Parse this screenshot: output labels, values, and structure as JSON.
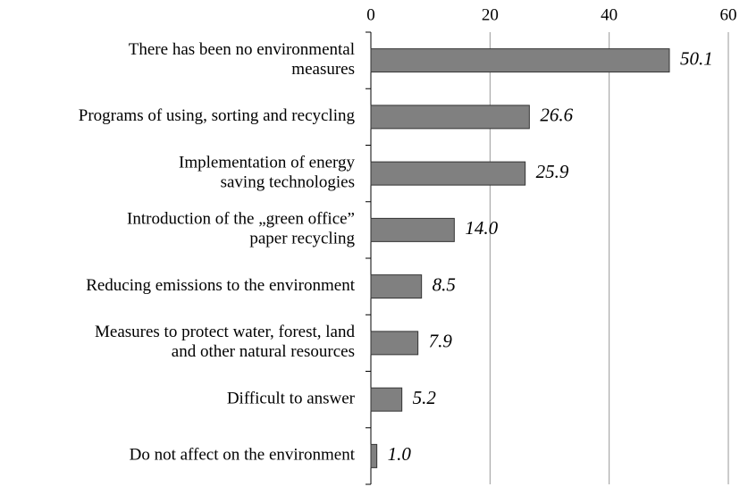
{
  "chart_data": {
    "type": "bar",
    "orientation": "horizontal",
    "categories": [
      [
        "There has been no environmental",
        "measures"
      ],
      [
        "Programs of using, sorting and recycling"
      ],
      [
        "Implementation of energy",
        "saving technologies"
      ],
      [
        "Introduction of the „green office”",
        "paper recycling"
      ],
      [
        "Reducing emissions to the environment"
      ],
      [
        "Measures to protect water, forest, land",
        "and other natural resources"
      ],
      [
        "Difficult to answer"
      ],
      [
        "Do not affect on the environment"
      ]
    ],
    "values": [
      50.1,
      26.6,
      25.9,
      14.0,
      8.5,
      7.9,
      5.2,
      1.0
    ],
    "value_labels": [
      "50.1",
      "26.6",
      "25.9",
      "14.0",
      "8.5",
      "7.9",
      "5.2",
      "1.0"
    ],
    "color": "#808080",
    "xlim": [
      0,
      60
    ],
    "xticks": [
      0,
      20,
      40,
      60
    ],
    "grid": true
  }
}
